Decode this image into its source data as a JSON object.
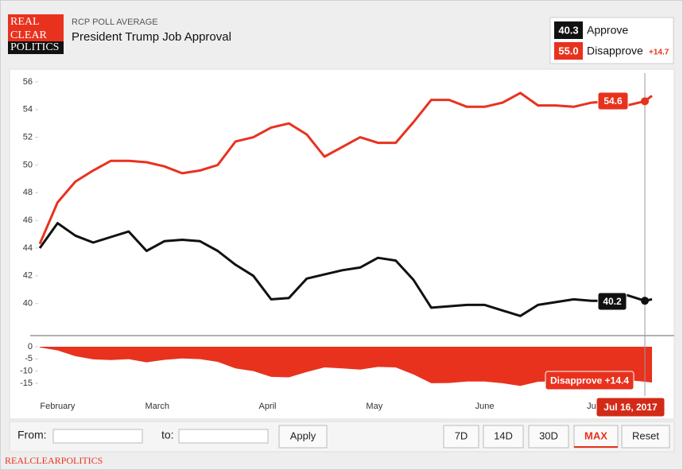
{
  "header": {
    "kicker": "RCP POLL AVERAGE",
    "title": "President Trump Job Approval",
    "logo": [
      "REAL",
      "CLEAR",
      "POLITICS"
    ]
  },
  "legend": {
    "approve_value": "40.3",
    "approve": "Approve",
    "disapprove_value": "55.0",
    "disapprove": "Disapprove",
    "spread": "+14.7"
  },
  "chart_data": [
    {
      "type": "line",
      "x": [
        0,
        5,
        10,
        15,
        20,
        25,
        30,
        35,
        40,
        45,
        50,
        55,
        60,
        65,
        70,
        75,
        80,
        85,
        90,
        95,
        100,
        105,
        110,
        115,
        120,
        125,
        130,
        135,
        140,
        145,
        150,
        155,
        160,
        165,
        170,
        172
      ],
      "xlim": [
        0,
        172
      ],
      "xticks": [
        {
          "value": 5,
          "label": "February"
        },
        {
          "value": 33,
          "label": "March"
        },
        {
          "value": 64,
          "label": "April"
        },
        {
          "value": 94,
          "label": "May"
        },
        {
          "value": 125,
          "label": "June"
        },
        {
          "value": 155,
          "label": "Ju"
        }
      ],
      "ylim": [
        38.2,
        56.6
      ],
      "yticks": [
        40,
        42,
        44,
        46,
        48,
        50,
        52,
        54,
        56
      ],
      "grid": false,
      "series": [
        {
          "name": "Approve",
          "color": "#111111",
          "values": [
            44.0,
            45.8,
            44.9,
            44.4,
            44.8,
            45.2,
            43.8,
            44.5,
            44.6,
            44.5,
            43.8,
            42.8,
            42.0,
            40.3,
            40.4,
            41.8,
            42.1,
            42.4,
            42.6,
            43.3,
            43.1,
            41.7,
            39.7,
            39.8,
            39.9,
            39.9,
            39.5,
            39.1,
            39.9,
            40.1,
            40.3,
            40.2,
            40.2,
            40.6,
            40.2,
            40.3
          ]
        },
        {
          "name": "Disapprove",
          "color": "#e8321e",
          "values": [
            44.3,
            47.3,
            48.8,
            49.6,
            50.3,
            50.3,
            50.2,
            49.9,
            49.4,
            49.6,
            50.0,
            51.7,
            52.0,
            52.7,
            53.0,
            52.2,
            50.6,
            51.3,
            52.0,
            51.6,
            51.6,
            53.1,
            54.7,
            54.7,
            54.2,
            54.2,
            54.5,
            55.2,
            54.3,
            54.3,
            54.2,
            54.5,
            54.6,
            54.3,
            54.6,
            55.0
          ]
        }
      ]
    },
    {
      "type": "area",
      "x": [
        0,
        5,
        10,
        15,
        20,
        25,
        30,
        35,
        40,
        45,
        50,
        55,
        60,
        65,
        70,
        75,
        80,
        85,
        90,
        95,
        100,
        105,
        110,
        115,
        120,
        125,
        130,
        135,
        140,
        145,
        150,
        155,
        160,
        165,
        170,
        172
      ],
      "xlim": [
        0,
        172
      ],
      "ylim": [
        -17,
        1.5
      ],
      "yticks": [
        0,
        -5,
        -10,
        -15
      ],
      "series": [
        {
          "color": "#e8321e",
          "values": [
            -0.3,
            -1.5,
            -3.9,
            -5.2,
            -5.5,
            -5.1,
            -6.4,
            -5.4,
            -4.8,
            -5.1,
            -6.2,
            -8.9,
            -10.0,
            -12.4,
            -12.6,
            -10.4,
            -8.5,
            -8.9,
            -9.4,
            -8.3,
            -8.5,
            -11.4,
            -15.0,
            -14.9,
            -14.3,
            -14.3,
            -15.0,
            -16.1,
            -14.4,
            -14.2,
            -13.9,
            -14.3,
            -14.4,
            -13.7,
            -14.4,
            -14.7
          ]
        }
      ]
    }
  ],
  "tooltip": {
    "date": "Jul 16, 2017",
    "approve": "40.2",
    "disapprove": "54.6",
    "spread": "Disapprove +14.4"
  },
  "controls": {
    "from": "From:",
    "to": "to:",
    "apply": "Apply",
    "ranges": [
      "7D",
      "14D",
      "30D",
      "MAX",
      "Reset"
    ]
  },
  "footer": "REALCLEARPOLITICS"
}
